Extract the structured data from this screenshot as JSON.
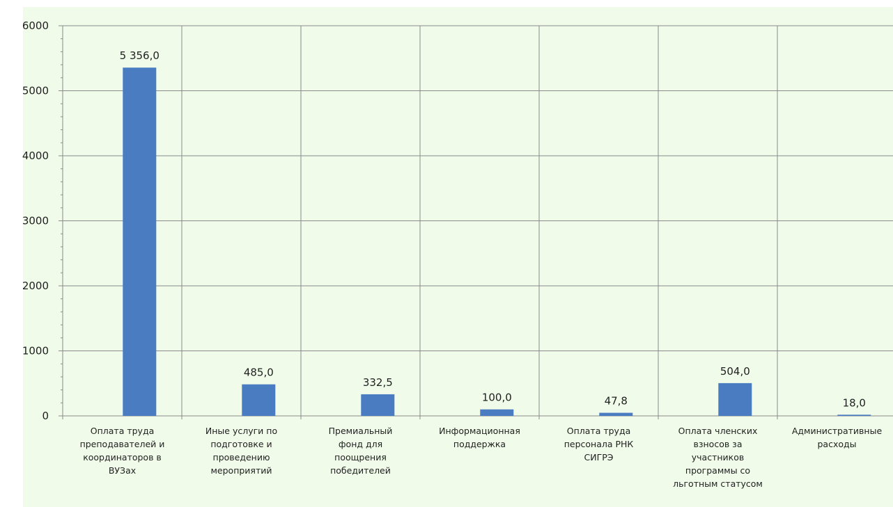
{
  "chart_data": {
    "type": "bar",
    "categories": [
      [
        "Оплата труда",
        "преподавателей и",
        "координаторов  в",
        "ВУЗах"
      ],
      [
        "Иные услуги по",
        "подготовке и",
        "проведению",
        "мероприятий"
      ],
      [
        "Премиальный",
        "фонд  для",
        "поощрения",
        "победителей"
      ],
      [
        "Информационная",
        "поддержка"
      ],
      [
        "Оплата труда",
        "персонала  РНК",
        "СИГРЭ"
      ],
      [
        "Оплата членских",
        "взносов за",
        "участников",
        "программы со",
        "льготным статусом"
      ],
      [
        "Административные",
        "расходы"
      ]
    ],
    "values": [
      5356.0,
      485.0,
      332.5,
      100.0,
      47.8,
      504.0,
      18.0
    ],
    "data_labels": [
      "5 356,0",
      "485,0",
      "332,5",
      "100,0",
      "47,8",
      "504,0",
      "18,0"
    ],
    "y_ticks": [
      "0",
      "1000",
      "2000",
      "3000",
      "4000",
      "5000",
      "6000"
    ],
    "ylim": [
      0,
      6000
    ],
    "grid": true,
    "bar_color": "#4a7cc1",
    "background_color": "#f0fbea"
  }
}
